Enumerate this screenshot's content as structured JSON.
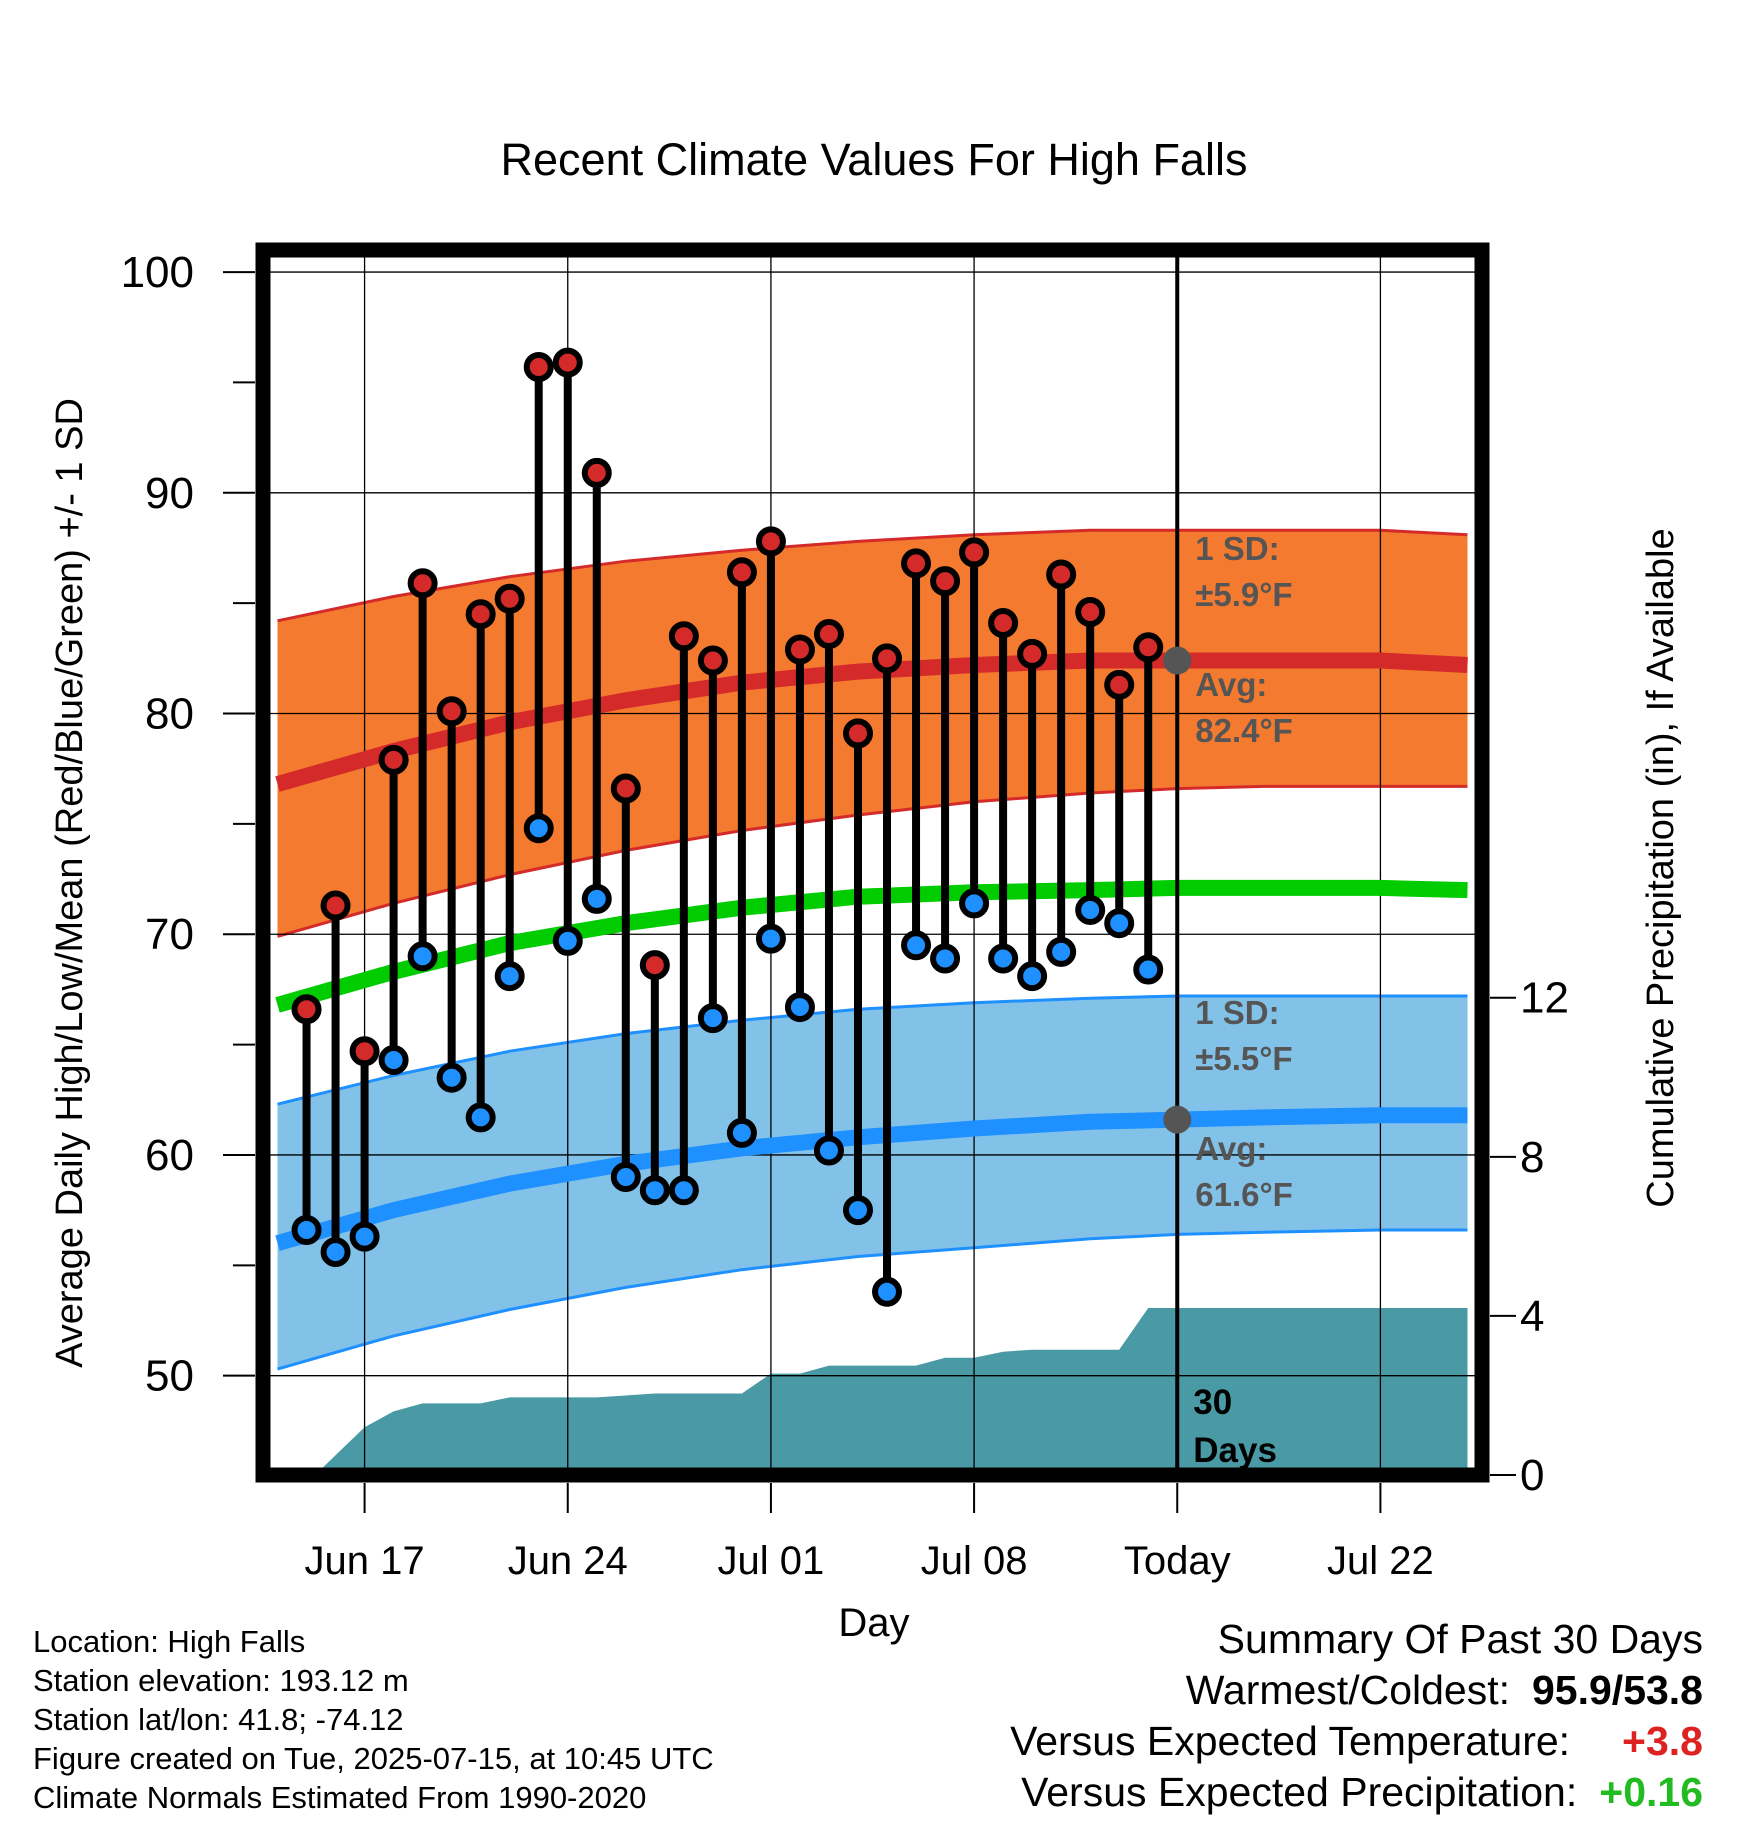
{
  "chart_data": {
    "type": "line",
    "title": "Recent Climate Values For High Falls",
    "xlabel": "Day",
    "ylabel": "Average Daily High/Low/Mean (Red/Blue/Green) +/- 1 SD",
    "y2label": "Cumulative Precipitation (in), If Available",
    "xlim": [
      -3.5,
      38.5
    ],
    "ylim": [
      45.5,
      101
    ],
    "y2lim": [
      0,
      30.8
    ],
    "grid": true,
    "xticks": [
      {
        "day": 0,
        "label": "Jun 17"
      },
      {
        "day": 7,
        "label": "Jun 24"
      },
      {
        "day": 14,
        "label": "Jul 01"
      },
      {
        "day": 21,
        "label": "Jul 08"
      },
      {
        "day": 28,
        "label": "Today"
      },
      {
        "day": 35,
        "label": "Jul 22"
      }
    ],
    "yticks": [
      50,
      60,
      70,
      80,
      90,
      100
    ],
    "y2ticks": [
      0,
      4,
      8,
      12
    ],
    "today_day": 28,
    "series": [
      {
        "name": "Observed High",
        "color": "#cc2222",
        "x": [
          -2,
          -1,
          0,
          1,
          2,
          3,
          4,
          5,
          6,
          7,
          8,
          9,
          10,
          11,
          12,
          13,
          14,
          15,
          16,
          17,
          18,
          19,
          20,
          21,
          22,
          23,
          24,
          25,
          26,
          27
        ],
        "values": [
          66.6,
          71.3,
          64.7,
          77.9,
          85.9,
          80.1,
          84.5,
          85.2,
          95.7,
          95.9,
          90.9,
          76.6,
          68.6,
          83.5,
          82.4,
          86.4,
          87.8,
          82.9,
          83.6,
          79.1,
          82.5,
          86.8,
          86.0,
          87.3,
          84.1,
          82.7,
          86.3,
          84.6,
          81.3,
          83.0
        ]
      },
      {
        "name": "Observed Low",
        "color": "#1e90ff",
        "x": [
          -2,
          -1,
          0,
          1,
          2,
          3,
          4,
          5,
          6,
          7,
          8,
          9,
          10,
          11,
          12,
          13,
          14,
          15,
          16,
          17,
          18,
          19,
          20,
          21,
          22,
          23,
          24,
          25,
          26,
          27
        ],
        "values": [
          56.6,
          55.6,
          56.3,
          64.3,
          69.0,
          63.5,
          61.7,
          68.1,
          74.8,
          69.7,
          71.6,
          59.0,
          58.4,
          58.4,
          66.2,
          61.0,
          69.8,
          66.7,
          60.2,
          57.5,
          53.8,
          69.5,
          68.9,
          71.4,
          68.9,
          68.1,
          69.2,
          71.1,
          70.5,
          68.4
        ]
      },
      {
        "name": "Normal High",
        "color": "#cc2222",
        "x": [
          -3,
          1,
          5,
          9,
          13,
          17,
          21,
          25,
          28,
          31,
          35,
          38
        ],
        "values": [
          76.8,
          78.3,
          79.6,
          80.6,
          81.4,
          81.9,
          82.2,
          82.4,
          82.4,
          82.4,
          82.4,
          82.2
        ]
      },
      {
        "name": "Normal Mean",
        "color": "#00cc00",
        "x": [
          -3,
          1,
          5,
          9,
          13,
          17,
          21,
          25,
          28,
          31,
          35,
          38
        ],
        "values": [
          66.8,
          68.3,
          69.6,
          70.5,
          71.2,
          71.7,
          71.9,
          72.0,
          72.1,
          72.1,
          72.1,
          72.0
        ]
      },
      {
        "name": "Normal Low",
        "color": "#1e90ff",
        "x": [
          -3,
          1,
          5,
          9,
          13,
          17,
          21,
          25,
          28,
          31,
          35,
          38
        ],
        "values": [
          56.0,
          57.5,
          58.7,
          59.6,
          60.3,
          60.8,
          61.2,
          61.5,
          61.6,
          61.7,
          61.8,
          61.8
        ]
      },
      {
        "name": "High +1 SD",
        "x": [
          -3,
          1,
          5,
          9,
          13,
          17,
          21,
          25,
          28,
          31,
          35,
          38
        ],
        "values": [
          84.2,
          85.3,
          86.2,
          86.9,
          87.4,
          87.8,
          88.1,
          88.3,
          88.3,
          88.3,
          88.3,
          88.1
        ]
      },
      {
        "name": "High -1 SD",
        "x": [
          -3,
          1,
          5,
          9,
          13,
          17,
          21,
          25,
          28,
          31,
          35,
          38
        ],
        "values": [
          69.9,
          71.4,
          72.7,
          73.8,
          74.7,
          75.4,
          76.0,
          76.4,
          76.6,
          76.7,
          76.7,
          76.7
        ]
      },
      {
        "name": "Low +1 SD",
        "x": [
          -3,
          1,
          5,
          9,
          13,
          17,
          21,
          25,
          28,
          31,
          35,
          38
        ],
        "values": [
          62.3,
          63.6,
          64.7,
          65.5,
          66.1,
          66.6,
          66.9,
          67.1,
          67.2,
          67.2,
          67.2,
          67.2
        ]
      },
      {
        "name": "Low -1 SD",
        "x": [
          -3,
          1,
          5,
          9,
          13,
          17,
          21,
          25,
          28,
          31,
          35,
          38
        ],
        "values": [
          50.3,
          51.8,
          53.0,
          54.0,
          54.8,
          55.4,
          55.8,
          56.2,
          56.4,
          56.5,
          56.6,
          56.6
        ]
      },
      {
        "name": "Cumulative Precipitation",
        "color": "#4a9aa5",
        "axis": "right",
        "x": [
          -1.7,
          -1,
          0,
          1,
          2,
          3,
          4,
          5,
          6,
          7,
          8,
          9,
          10,
          11,
          12,
          13,
          14,
          15,
          16,
          17,
          18,
          19,
          20,
          21,
          22,
          23,
          24,
          25,
          26,
          27,
          28,
          29,
          30,
          31,
          32,
          33,
          34,
          35,
          36,
          37,
          38
        ],
        "values": [
          0,
          0.5,
          1.2,
          1.6,
          1.8,
          1.8,
          1.8,
          1.95,
          1.95,
          1.95,
          1.95,
          2.0,
          2.05,
          2.05,
          2.05,
          2.05,
          2.55,
          2.55,
          2.75,
          2.75,
          2.75,
          2.75,
          2.95,
          2.95,
          3.1,
          3.15,
          3.15,
          3.15,
          3.15,
          4.2,
          4.2,
          4.2,
          4.2,
          4.2,
          4.2,
          4.2,
          4.2,
          4.2,
          4.2,
          4.2,
          4.2
        ]
      }
    ],
    "annotations": {
      "high_sd": {
        "label": "1 SD:",
        "value": "±5.9°F"
      },
      "high_avg": {
        "label": "Avg:",
        "value": "82.4°F"
      },
      "low_sd": {
        "label": "1 SD:",
        "value": "±5.5°F"
      },
      "low_avg": {
        "label": "Avg:",
        "value": "61.6°F"
      },
      "days": "30",
      "days_label": "Days"
    }
  },
  "info": {
    "location": "Location: High Falls",
    "elevation": "Station elevation: 193.12 m",
    "latlon": "Station lat/lon: 41.8; -74.12",
    "created": "Figure created on Tue, 2025-07-15, at 10:45 UTC",
    "normals": "Climate Normals Estimated From 1990-2020"
  },
  "summary": {
    "title": "Summary Of Past 30 Days",
    "warm_cold_label": "Warmest/Coldest:",
    "warm_cold_value": "95.9/53.8",
    "temp_label": "Versus Expected Temperature:",
    "temp_value": "+3.8",
    "temp_color": "#dd2222",
    "precip_label": "Versus Expected Precipitation:",
    "precip_value": "+0.16",
    "precip_color": "#22bb22"
  },
  "colors": {
    "high_band": "#f47a2f",
    "low_band": "#83c2e8",
    "high_line": "#d42a2a",
    "low_line": "#1e90ff",
    "mean_line": "#00cc00",
    "precip": "#4a9aa5",
    "annotation": "#555555"
  }
}
